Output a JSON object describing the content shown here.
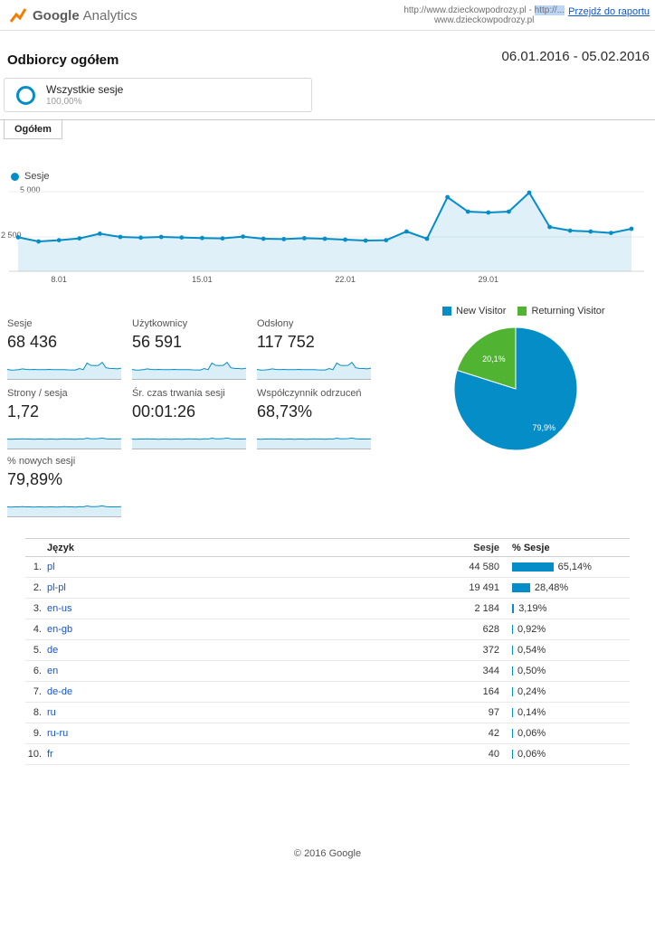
{
  "header": {
    "logo_google": "Google",
    "logo_analytics": "Analytics",
    "property_line1a": "http://www.dzieckowpodrozy.pl - ",
    "property_line1b": "http://...",
    "property_line2": "www.dzieckowpodrozy.pl",
    "go_to_report": "Przejdź do raportu"
  },
  "report": {
    "title": "Odbiorcy ogółem",
    "date_range": "06.01.2016 - 05.02.2016",
    "segment_name": "Wszystkie sesje",
    "segment_percent": "100,00%",
    "tab_label": "Ogółem"
  },
  "colors": {
    "accent_blue": "#058dc7",
    "pie_green": "#50b432",
    "link_blue": "#1155cc"
  },
  "chart_data": [
    {
      "type": "area",
      "title": "Sesje",
      "legend": "Sesje",
      "x": [
        "6.01",
        "7.01",
        "8.01",
        "9.01",
        "10.01",
        "11.01",
        "12.01",
        "13.01",
        "14.01",
        "15.01",
        "16.01",
        "17.01",
        "18.01",
        "19.01",
        "20.01",
        "21.01",
        "22.01",
        "23.01",
        "24.01",
        "25.01",
        "26.01",
        "27.01",
        "28.01",
        "29.01",
        "30.01",
        "31.01",
        "1.02",
        "2.02",
        "3.02",
        "4.02",
        "5.02"
      ],
      "values": [
        2480,
        2250,
        2320,
        2420,
        2680,
        2500,
        2460,
        2500,
        2470,
        2440,
        2420,
        2520,
        2400,
        2380,
        2430,
        2400,
        2350,
        2300,
        2320,
        2800,
        2400,
        4700,
        3900,
        3850,
        3900,
        4950,
        3050,
        2850,
        2800,
        2720,
        2950
      ],
      "x_tick_labels": [
        "8.01",
        "15.01",
        "22.01",
        "29.01"
      ],
      "y_ticks": [
        2500,
        5000
      ],
      "y_tick_labels": [
        "2 500",
        "5 000"
      ],
      "ylim": [
        0,
        5600
      ],
      "grid": true,
      "color": "#058dc7"
    },
    {
      "type": "pie",
      "labels": [
        "New Visitor",
        "Returning Visitor"
      ],
      "values": [
        79.9,
        20.1
      ],
      "slice_labels": [
        "79,9%",
        "20,1%"
      ],
      "colors": [
        "#058dc7",
        "#50b432"
      ],
      "legend_position": "top"
    }
  ],
  "spark_shapes": {
    "volume": [
      0.5,
      0.45,
      0.46,
      0.48,
      0.54,
      0.5,
      0.49,
      0.5,
      0.49,
      0.49,
      0.48,
      0.5,
      0.48,
      0.48,
      0.49,
      0.48,
      0.47,
      0.46,
      0.46,
      0.56,
      0.48,
      0.94,
      0.78,
      0.77,
      0.78,
      0.99,
      0.61,
      0.57,
      0.56,
      0.54,
      0.59
    ],
    "flat": [
      0.5,
      0.49,
      0.5,
      0.5,
      0.51,
      0.5,
      0.5,
      0.49,
      0.5,
      0.5,
      0.49,
      0.5,
      0.5,
      0.49,
      0.5,
      0.51,
      0.5,
      0.5,
      0.49,
      0.52,
      0.5,
      0.56,
      0.52,
      0.52,
      0.53,
      0.57,
      0.51,
      0.5,
      0.5,
      0.5,
      0.51
    ]
  },
  "metrics": [
    {
      "label": "Sesje",
      "value": "68 436",
      "spark": "volume"
    },
    {
      "label": "Użytkownicy",
      "value": "56 591",
      "spark": "volume"
    },
    {
      "label": "Odsłony",
      "value": "117 752",
      "spark": "volume"
    },
    {
      "label": "Strony / sesja",
      "value": "1,72",
      "spark": "flat"
    },
    {
      "label": "Śr. czas trwania sesji",
      "value": "00:01:26",
      "spark": "flat"
    },
    {
      "label": "Współczynnik odrzuceń",
      "value": "68,73%",
      "spark": "flat"
    },
    {
      "label": "% nowych sesji",
      "value": "79,89%",
      "spark": "flat"
    }
  ],
  "table": {
    "col_dimension": "Język",
    "col_metric": "Sesje",
    "col_percent": "% Sesje",
    "rows": [
      {
        "rank": "1.",
        "language": "pl",
        "sessions": "44 580",
        "percent": "65,14%",
        "percent_value": 65.14
      },
      {
        "rank": "2.",
        "language": "pl-pl",
        "sessions": "19 491",
        "percent": "28,48%",
        "percent_value": 28.48
      },
      {
        "rank": "3.",
        "language": "en-us",
        "sessions": "2 184",
        "percent": "3,19%",
        "percent_value": 3.19
      },
      {
        "rank": "4.",
        "language": "en-gb",
        "sessions": "628",
        "percent": "0,92%",
        "percent_value": 0.92
      },
      {
        "rank": "5.",
        "language": "de",
        "sessions": "372",
        "percent": "0,54%",
        "percent_value": 0.54
      },
      {
        "rank": "6.",
        "language": "en",
        "sessions": "344",
        "percent": "0,50%",
        "percent_value": 0.5
      },
      {
        "rank": "7.",
        "language": "de-de",
        "sessions": "164",
        "percent": "0,24%",
        "percent_value": 0.24
      },
      {
        "rank": "8.",
        "language": "ru",
        "sessions": "97",
        "percent": "0,14%",
        "percent_value": 0.14
      },
      {
        "rank": "9.",
        "language": "ru-ru",
        "sessions": "42",
        "percent": "0,06%",
        "percent_value": 0.06
      },
      {
        "rank": "10.",
        "language": "fr",
        "sessions": "40",
        "percent": "0,06%",
        "percent_value": 0.06
      }
    ]
  },
  "footer": {
    "copyright": "© 2016 Google"
  }
}
